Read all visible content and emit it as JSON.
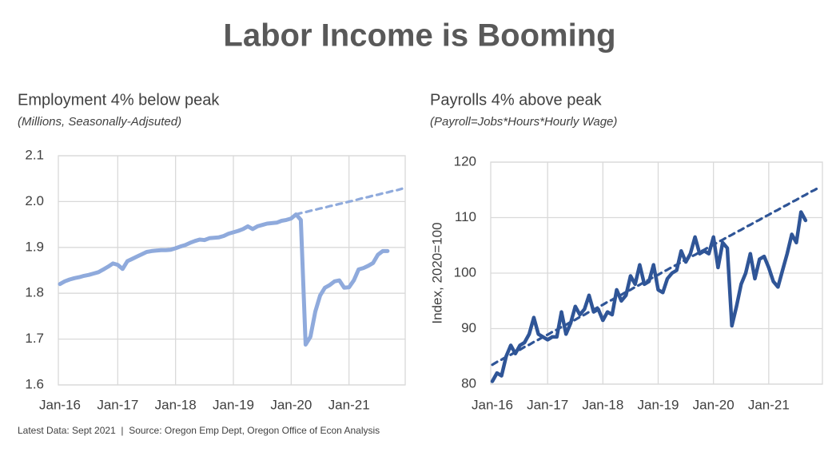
{
  "title": "Labor Income is Booming",
  "footnote": "Latest Data: Sept 2021  |  Source: Oregon Emp Dept, Oregon Office of Econ Analysis",
  "chart_data": [
    {
      "type": "line",
      "title": "Employment 4% below peak",
      "subtitle": "(Millions, Seasonally-Adjsuted)",
      "categories": [
        "Jan-16",
        null,
        null,
        null,
        null,
        null,
        null,
        null,
        null,
        null,
        null,
        null,
        "Jan-17",
        null,
        null,
        null,
        null,
        null,
        null,
        null,
        null,
        null,
        null,
        null,
        "Jan-18",
        null,
        null,
        null,
        null,
        null,
        null,
        null,
        null,
        null,
        null,
        null,
        "Jan-19",
        null,
        null,
        null,
        null,
        null,
        null,
        null,
        null,
        null,
        null,
        null,
        "Jan-20",
        null,
        null,
        null,
        null,
        null,
        null,
        null,
        null,
        null,
        null,
        null,
        "Jan-21",
        null,
        null,
        null,
        null,
        null,
        null,
        null,
        null,
        null,
        null,
        null
      ],
      "ylim": [
        1.6,
        2.1
      ],
      "yticks": [
        1.6,
        1.7,
        1.8,
        1.9,
        {
          "value": 2,
          "label": "2.0"
        },
        2.1
      ],
      "grid": true,
      "series": [
        {
          "color": "#8FAADC",
          "dashed": false,
          "values": [
            1.82,
            1.826,
            1.83,
            1.833,
            1.835,
            1.838,
            1.84,
            1.843,
            1.846,
            1.852,
            1.858,
            1.865,
            1.862,
            1.853,
            1.87,
            1.875,
            1.88,
            1.885,
            1.89,
            1.892,
            1.893,
            1.894,
            1.894,
            1.895,
            1.898,
            1.902,
            1.905,
            1.91,
            1.914,
            1.917,
            1.916,
            1.92,
            1.921,
            1.922,
            1.925,
            1.93,
            1.933,
            1.936,
            1.94,
            1.946,
            1.94,
            1.946,
            1.949,
            1.952,
            1.953,
            1.954,
            1.958,
            1.96,
            1.963,
            1.972,
            1.96,
            1.688,
            1.705,
            1.76,
            1.795,
            1.812,
            1.818,
            1.826,
            1.828,
            1.812,
            1.813,
            1.828,
            1.852,
            1.855,
            1.86,
            1.866,
            1.884,
            1.892,
            1.892,
            null,
            null,
            null
          ]
        },
        {
          "color": "#8FAADC",
          "dashed": true,
          "values": [
            null,
            null,
            null,
            null,
            null,
            null,
            null,
            null,
            null,
            null,
            null,
            null,
            null,
            null,
            null,
            null,
            null,
            null,
            null,
            null,
            null,
            null,
            null,
            null,
            null,
            null,
            null,
            null,
            null,
            null,
            null,
            null,
            null,
            null,
            null,
            null,
            null,
            null,
            null,
            null,
            null,
            null,
            null,
            null,
            null,
            null,
            null,
            null,
            null,
            1.972,
            1.975,
            1.977,
            1.98,
            1.982,
            1.985,
            1.987,
            1.99,
            1.992,
            1.995,
            1.997,
            2.0,
            2.002,
            2.005,
            2.008,
            2.01,
            2.013,
            2.015,
            2.018,
            2.02,
            2.023,
            2.025,
            2.028
          ]
        }
      ]
    },
    {
      "type": "line",
      "title": "Payrolls 4% above peak",
      "subtitle": "(Payroll=Jobs*Hours*Hourly Wage)",
      "ylabel": "Index, 2020=100",
      "categories": [
        "Jan-16",
        null,
        null,
        null,
        null,
        null,
        null,
        null,
        null,
        null,
        null,
        null,
        "Jan-17",
        null,
        null,
        null,
        null,
        null,
        null,
        null,
        null,
        null,
        null,
        null,
        "Jan-18",
        null,
        null,
        null,
        null,
        null,
        null,
        null,
        null,
        null,
        null,
        null,
        "Jan-19",
        null,
        null,
        null,
        null,
        null,
        null,
        null,
        null,
        null,
        null,
        null,
        "Jan-20",
        null,
        null,
        null,
        null,
        null,
        null,
        null,
        null,
        null,
        null,
        null,
        "Jan-21",
        null,
        null,
        null,
        null,
        null,
        null,
        null,
        null,
        null,
        null,
        null
      ],
      "ylim": [
        80,
        120
      ],
      "yticks": [
        80,
        90,
        100,
        110,
        120
      ],
      "grid": true,
      "series": [
        {
          "color": "#2F5597",
          "dashed": false,
          "values": [
            80.5,
            82,
            81.5,
            85,
            87,
            85.5,
            87,
            87.5,
            89,
            92,
            89,
            88.5,
            88,
            88.5,
            88.5,
            93,
            89,
            91,
            94,
            92.5,
            93.5,
            96,
            93,
            93.5,
            91.5,
            93,
            92.5,
            97,
            95,
            96,
            99.5,
            98,
            101.5,
            98,
            98.5,
            101.5,
            97,
            96.5,
            99,
            100,
            100.5,
            104,
            102,
            103.5,
            106.5,
            103.5,
            104,
            103.5,
            106.5,
            101,
            105.5,
            104.5,
            90.5,
            94,
            98,
            100,
            103.5,
            99,
            102.5,
            103,
            101,
            98.5,
            97.5,
            100.5,
            103.5,
            107,
            105.5,
            111,
            109.5,
            null,
            null,
            null
          ]
        },
        {
          "color": "#2F5597",
          "dashed": true,
          "values": [
            83.5,
            84.0,
            84.4,
            84.9,
            85.3,
            85.8,
            86.2,
            86.7,
            87.1,
            87.6,
            88.0,
            88.5,
            88.9,
            89.4,
            89.8,
            90.3,
            90.7,
            91.2,
            91.6,
            92.1,
            92.5,
            93.0,
            93.4,
            93.9,
            94.3,
            94.8,
            95.2,
            95.7,
            96.1,
            96.6,
            97.0,
            97.5,
            97.9,
            98.4,
            98.8,
            99.3,
            99.7,
            100.2,
            100.6,
            101.1,
            101.5,
            102.0,
            102.4,
            102.9,
            103.3,
            103.8,
            104.2,
            104.7,
            105.1,
            105.6,
            106.0,
            106.5,
            106.9,
            107.4,
            107.8,
            108.3,
            108.7,
            109.2,
            109.6,
            110.1,
            110.5,
            111.0,
            111.4,
            111.9,
            112.3,
            112.8,
            113.2,
            113.7,
            114.1,
            114.6,
            115.0,
            115.5
          ]
        }
      ]
    }
  ]
}
